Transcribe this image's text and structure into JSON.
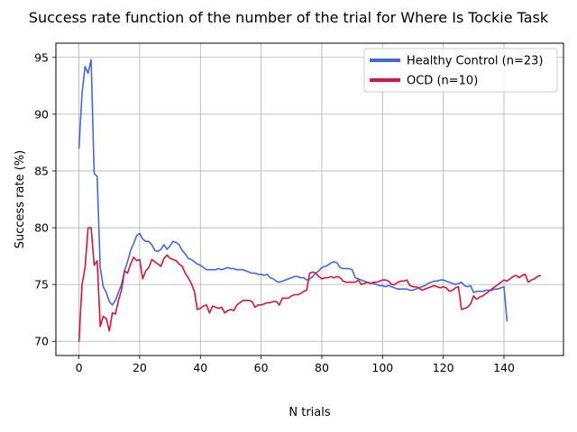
{
  "chart_data": {
    "type": "line",
    "title": "Success rate function of the number of the trial for Where Is Tockie Task",
    "xlabel": "N trials",
    "ylabel": "Success rate (%)",
    "xlim": [
      -7.6,
      159.6
    ],
    "ylim": [
      68.75,
      96.25
    ],
    "xticks": [
      0,
      20,
      40,
      60,
      80,
      100,
      120,
      140
    ],
    "yticks": [
      70,
      75,
      80,
      85,
      90,
      95
    ],
    "grid": true,
    "legend_position": "top-right",
    "series": [
      {
        "name": "Healthy Control (n=23)",
        "color": "#4169e1",
        "x": [
          0,
          1,
          2,
          3,
          4,
          5,
          6,
          7,
          8,
          9,
          10,
          11,
          12,
          13,
          14,
          15,
          16,
          17,
          18,
          19,
          20,
          21,
          22,
          23,
          24,
          25,
          26,
          27,
          28,
          29,
          30,
          31,
          32,
          33,
          34,
          35,
          36,
          37,
          38,
          39,
          40,
          41,
          42,
          43,
          44,
          45,
          46,
          47,
          48,
          49,
          50,
          51,
          52,
          53,
          54,
          55,
          56,
          57,
          58,
          59,
          60,
          61,
          62,
          63,
          64,
          65,
          66,
          67,
          68,
          69,
          70,
          71,
          72,
          73,
          74,
          75,
          76,
          77,
          78,
          79,
          80,
          81,
          82,
          83,
          84,
          85,
          86,
          87,
          88,
          89,
          90,
          91,
          92,
          93,
          94,
          95,
          96,
          97,
          98,
          99,
          100,
          101,
          102,
          103,
          104,
          105,
          106,
          107,
          108,
          109,
          110,
          111,
          112,
          113,
          114,
          115,
          116,
          117,
          118,
          119,
          120,
          121,
          122,
          123,
          124,
          125,
          126,
          127,
          128,
          129,
          130,
          131,
          132,
          133,
          134,
          135,
          136,
          137,
          138,
          139,
          140,
          141
        ],
        "values": [
          87.0,
          91.8,
          94.2,
          93.6,
          94.8,
          84.8,
          84.5,
          76.5,
          74.8,
          74.3,
          73.5,
          73.2,
          73.6,
          74.3,
          75.0,
          76.2,
          77.0,
          78.0,
          78.6,
          79.3,
          79.5,
          79.0,
          78.8,
          78.8,
          78.5,
          78.0,
          77.9,
          78.1,
          78.5,
          78.1,
          78.4,
          78.8,
          78.7,
          78.5,
          78.0,
          77.7,
          77.3,
          77.2,
          77.0,
          76.8,
          76.7,
          76.5,
          76.3,
          76.3,
          76.3,
          76.3,
          76.4,
          76.3,
          76.4,
          76.5,
          76.4,
          76.4,
          76.3,
          76.3,
          76.3,
          76.2,
          76.1,
          76.0,
          76.0,
          75.9,
          75.9,
          75.8,
          75.9,
          75.6,
          75.5,
          75.3,
          75.2,
          75.3,
          75.4,
          75.5,
          75.6,
          75.7,
          75.7,
          75.6,
          75.6,
          75.4,
          75.5,
          75.7,
          76.0,
          76.2,
          76.5,
          76.6,
          76.7,
          76.9,
          77.0,
          76.9,
          76.5,
          76.4,
          76.4,
          76.4,
          76.3,
          75.6,
          75.5,
          75.4,
          75.3,
          75.2,
          75.1,
          75.1,
          75.0,
          74.9,
          74.9,
          74.8,
          74.9,
          74.8,
          74.7,
          74.6,
          74.6,
          74.6,
          74.6,
          74.5,
          74.5,
          74.6,
          74.7,
          74.8,
          74.9,
          75.1,
          75.2,
          75.3,
          75.3,
          75.4,
          75.4,
          75.3,
          75.2,
          75.1,
          75.0,
          75.1,
          75.2,
          74.9,
          74.8,
          74.9,
          74.3,
          74.4,
          74.4,
          74.4,
          74.5,
          74.5,
          74.5,
          74.6,
          74.6,
          74.7,
          74.8,
          71.8
        ]
      },
      {
        "name": "OCD (n=10)",
        "color": "#dc143c",
        "x": [
          0,
          1,
          2,
          3,
          4,
          5,
          6,
          7,
          8,
          9,
          10,
          11,
          12,
          13,
          14,
          15,
          16,
          17,
          18,
          19,
          20,
          21,
          22,
          23,
          24,
          25,
          26,
          27,
          28,
          29,
          30,
          31,
          32,
          33,
          34,
          35,
          36,
          37,
          38,
          39,
          40,
          41,
          42,
          43,
          44,
          45,
          46,
          47,
          48,
          49,
          50,
          51,
          52,
          53,
          54,
          55,
          56,
          57,
          58,
          59,
          60,
          61,
          62,
          63,
          64,
          65,
          66,
          67,
          68,
          69,
          70,
          71,
          72,
          73,
          74,
          75,
          76,
          77,
          78,
          79,
          80,
          81,
          82,
          83,
          84,
          85,
          86,
          87,
          88,
          89,
          90,
          91,
          92,
          93,
          94,
          95,
          96,
          97,
          98,
          99,
          100,
          101,
          102,
          103,
          104,
          105,
          106,
          107,
          108,
          109,
          110,
          111,
          112,
          113,
          114,
          115,
          116,
          117,
          118,
          119,
          120,
          121,
          122,
          123,
          124,
          125,
          126,
          127,
          128,
          129,
          130,
          131,
          132,
          133,
          134,
          135,
          136,
          137,
          138,
          139,
          140,
          141,
          142,
          143,
          144,
          145,
          146,
          147,
          148,
          149,
          150,
          151,
          152
        ],
        "values": [
          70.0,
          75.0,
          76.5,
          80.0,
          80.0,
          76.7,
          77.1,
          71.3,
          72.2,
          72.0,
          70.9,
          72.5,
          72.4,
          73.6,
          74.5,
          76.2,
          76.0,
          76.8,
          77.4,
          77.1,
          77.2,
          75.5,
          76.2,
          76.5,
          77.2,
          77.0,
          76.8,
          76.6,
          77.3,
          77.6,
          77.3,
          77.2,
          77.1,
          76.8,
          76.6,
          76.0,
          75.6,
          75.1,
          74.4,
          72.8,
          72.9,
          73.1,
          73.2,
          72.5,
          73.1,
          73.0,
          72.9,
          73.0,
          72.5,
          72.7,
          72.8,
          72.7,
          73.2,
          73.4,
          73.6,
          73.6,
          73.6,
          73.5,
          73.0,
          73.2,
          73.2,
          73.3,
          73.4,
          73.4,
          73.5,
          73.5,
          73.2,
          73.8,
          73.8,
          73.8,
          74.0,
          74.1,
          74.1,
          74.2,
          74.4,
          74.5,
          76.0,
          76.1,
          76.0,
          75.7,
          75.5,
          75.6,
          75.6,
          75.7,
          75.6,
          75.7,
          75.6,
          75.3,
          75.2,
          75.2,
          75.2,
          75.2,
          75.4,
          75.0,
          75.1,
          75.2,
          75.1,
          75.2,
          75.2,
          75.3,
          75.4,
          75.4,
          75.3,
          75.0,
          75.0,
          75.2,
          75.3,
          75.3,
          75.4,
          74.9,
          74.8,
          74.8,
          74.7,
          74.5,
          74.6,
          74.7,
          74.8,
          74.9,
          74.8,
          74.7,
          74.8,
          74.7,
          74.4,
          74.5,
          74.7,
          74.8,
          72.8,
          72.9,
          73.0,
          73.3,
          74.0,
          73.7,
          73.9,
          74.0,
          74.2,
          74.4,
          74.6,
          74.8,
          75.0,
          75.2,
          75.4,
          75.3,
          75.5,
          75.7,
          75.8,
          75.6,
          75.8,
          75.9,
          75.2,
          75.4,
          75.5,
          75.7,
          75.8
        ]
      }
    ]
  }
}
